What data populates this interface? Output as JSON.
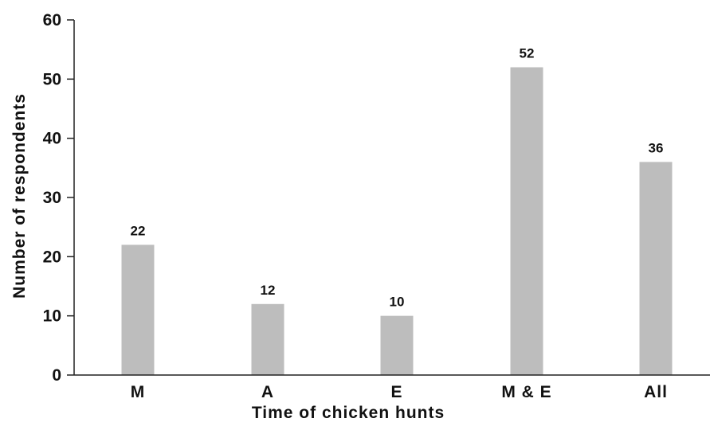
{
  "chart_data": {
    "type": "bar",
    "categories": [
      "M",
      "A",
      "E",
      "M & E",
      "All"
    ],
    "values": [
      22,
      12,
      10,
      52,
      36
    ],
    "data_labels": [
      "22",
      "12",
      "10",
      "52",
      "36"
    ],
    "xlabel": "Time of chicken hunts",
    "ylabel": "Number of respondents",
    "ylim": [
      0,
      60
    ],
    "yticks": [
      0,
      10,
      20,
      30,
      40,
      50,
      60
    ],
    "ytick_labels": [
      "0",
      "10",
      "20",
      "30",
      "40",
      "50",
      "60"
    ],
    "grid": false,
    "legend": "none",
    "bar_color": "#bdbdbd",
    "axis_color": "#222222"
  }
}
